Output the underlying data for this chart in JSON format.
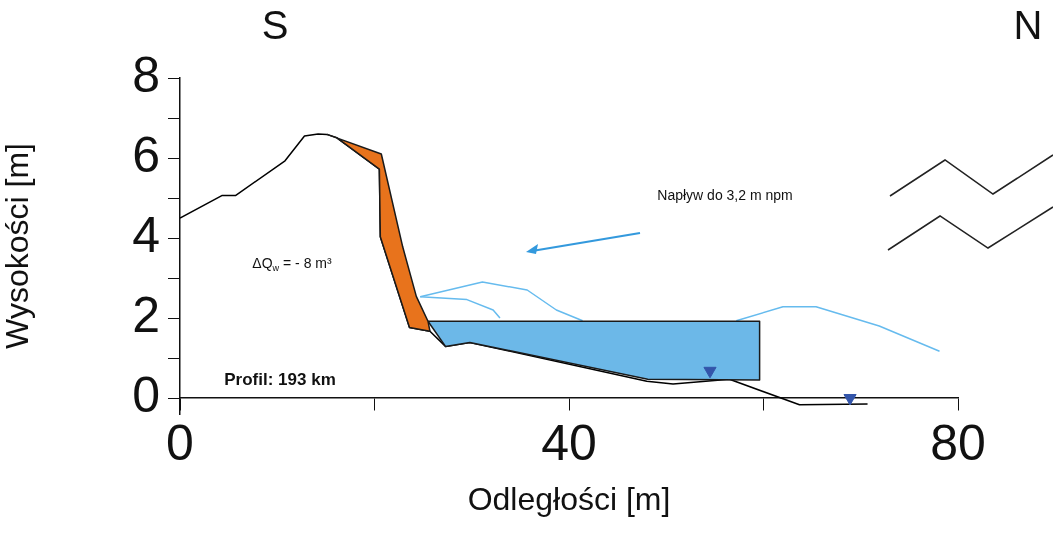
{
  "chart_data": {
    "type": "line",
    "xlabel": "Odległości [m]",
    "ylabel": "Wysokości [m]",
    "xlim": [
      0,
      80
    ],
    "ylim": [
      -0.4,
      8
    ],
    "xticks": [
      0,
      {
        "value": 20,
        "label": null
      },
      40,
      {
        "value": 60,
        "label": null
      },
      80
    ],
    "yticks": [
      0,
      {
        "value": 1,
        "label": null
      },
      2,
      {
        "value": 3,
        "label": null
      },
      4,
      {
        "value": 5,
        "label": null
      },
      6,
      {
        "value": 7,
        "label": null
      },
      8
    ],
    "grid": false,
    "legend": false,
    "marker": "none",
    "annotations": [
      "S",
      "N",
      "Profil: 193 km",
      "ΔQ$_{w}$ = - 8 m³",
      "Napływ do 3,2 m npm"
    ],
    "series": [
      {
        "type": "area",
        "color": "#e8731c",
        "x": [
          15.1,
          20.7,
          22.9,
          24.3,
          25.5,
          25.7,
          23.6,
          20.6,
          20.5,
          16.1,
          15.1
        ],
        "values": [
          6.59,
          6.1,
          3.78,
          2.54,
          1.92,
          1.67,
          1.76,
          4.03,
          5.72,
          6.51,
          6.59
        ]
      },
      {
        "type": "area",
        "color": "#6cb8e8",
        "x": [
          25.5,
          59.6,
          59.6,
          48.1,
          29.8,
          27.3,
          25.5
        ],
        "values": [
          1.92,
          1.92,
          0.45,
          0.47,
          1.39,
          1.29,
          1.92
        ]
      },
      {
        "color": "#000000",
        "x": [
          0,
          4.3,
          5.7,
          10.8,
          12.8,
          14.2,
          15.1,
          16.1,
          20.5,
          20.6,
          23.6,
          25.7,
          27.3,
          29.8,
          48,
          50.7,
          56.5,
          63.7,
          70.7
        ],
        "values": [
          4.5,
          5.06,
          5.06,
          5.93,
          6.55,
          6.6,
          6.59,
          6.51,
          5.72,
          4.03,
          1.76,
          1.67,
          1.29,
          1.39,
          0.42,
          0.35,
          0.47,
          -0.17,
          -0.15
        ]
      },
      {
        "color": "#66bbee",
        "x": [
          24.7,
          31.1,
          35.7,
          38.7,
          41.4
        ],
        "values": [
          2.53,
          2.9,
          2.7,
          2.2,
          1.93
        ]
      },
      {
        "color": "#66bbee",
        "x": [
          24.7,
          29.5,
          32.2,
          32.9
        ],
        "values": [
          2.53,
          2.46,
          2.2,
          2.0
        ]
      },
      {
        "color": "#66bbee",
        "x": [
          57.2,
          62,
          65.4,
          71.9,
          78.1
        ],
        "values": [
          1.93,
          2.28,
          2.28,
          1.8,
          1.17
        ]
      },
      {
        "type": "scatter",
        "marker": "triangle",
        "color": "#3355aa",
        "x": [
          54.5,
          68.9
        ],
        "values": [
          0.68,
          0.0
        ]
      }
    ]
  }
}
